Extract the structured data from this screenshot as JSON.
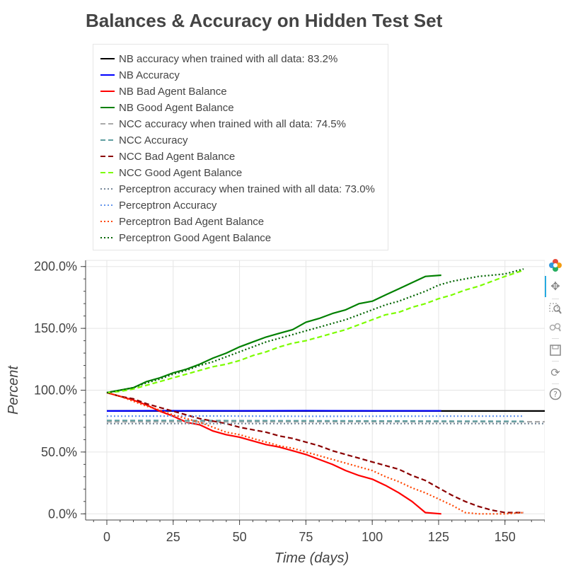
{
  "chart_data": {
    "type": "line",
    "title": "Balances & Accuracy on Hidden Test Set",
    "xlabel": "Time (days)",
    "ylabel": "Percent",
    "xlim": [
      -8,
      165
    ],
    "ylim": [
      -5,
      205
    ],
    "xticks": [
      0,
      25,
      50,
      75,
      100,
      125,
      150
    ],
    "xtick_labels": [
      "0",
      "25",
      "50",
      "75",
      "100",
      "125",
      "150"
    ],
    "yticks": [
      0,
      50,
      100,
      150,
      200
    ],
    "ytick_labels": [
      "0.0%",
      "50.0%",
      "100.0%",
      "150.0%",
      "200.0%"
    ],
    "grid": true,
    "legend_position": "top-left, above plot",
    "series": [
      {
        "name": "NB accuracy when trained with all data: 83.2%",
        "color": "#000000",
        "dash": "solid",
        "x": [
          0,
          165
        ],
        "y": [
          83.2,
          83.2
        ]
      },
      {
        "name": "NB Accuracy",
        "color": "#0000ff",
        "dash": "solid",
        "x": [
          0,
          20,
          50,
          75,
          100,
          126
        ],
        "y": [
          83.2,
          83.4,
          83.3,
          83.4,
          83.3,
          83.3
        ]
      },
      {
        "name": "NB Bad Agent Balance",
        "color": "#ff0000",
        "dash": "solid",
        "x": [
          0,
          5,
          10,
          15,
          20,
          25,
          30,
          35,
          40,
          45,
          50,
          55,
          60,
          65,
          70,
          75,
          80,
          85,
          90,
          95,
          100,
          105,
          110,
          115,
          120,
          126
        ],
        "y": [
          98,
          95,
          92,
          88,
          83,
          79,
          74,
          72,
          67,
          64,
          62,
          59,
          56,
          54,
          51,
          48,
          44,
          40,
          35,
          31,
          28,
          23,
          17,
          10,
          1,
          0
        ]
      },
      {
        "name": "NB Good Agent Balance",
        "color": "#008000",
        "dash": "solid",
        "x": [
          0,
          5,
          10,
          15,
          20,
          25,
          30,
          35,
          40,
          45,
          50,
          55,
          60,
          65,
          70,
          75,
          80,
          85,
          90,
          95,
          100,
          105,
          110,
          115,
          120,
          126
        ],
        "y": [
          98,
          100,
          102,
          107,
          110,
          114,
          117,
          121,
          126,
          130,
          135,
          139,
          143,
          146,
          149,
          155,
          158,
          162,
          165,
          170,
          172,
          177,
          182,
          187,
          192,
          193
        ]
      },
      {
        "name": "NCC accuracy when trained with all data: 74.5%",
        "color": "#aaaaaa",
        "dash": "dashed",
        "x": [
          0,
          165
        ],
        "y": [
          74.5,
          74.5
        ]
      },
      {
        "name": "NCC Accuracy",
        "color": "#5f9ea0",
        "dash": "dashed",
        "x": [
          0,
          40,
          80,
          120,
          157
        ],
        "y": [
          75.5,
          75.4,
          75.2,
          75.0,
          74.8
        ]
      },
      {
        "name": "NCC Bad Agent Balance",
        "color": "#8b0000",
        "dash": "dashed",
        "x": [
          0,
          5,
          10,
          15,
          20,
          25,
          30,
          35,
          40,
          45,
          50,
          55,
          60,
          65,
          70,
          75,
          80,
          85,
          90,
          95,
          100,
          105,
          110,
          115,
          120,
          125,
          130,
          135,
          140,
          145,
          150,
          157
        ],
        "y": [
          98,
          95,
          93,
          89,
          86,
          83,
          80,
          77,
          75,
          73,
          70,
          68,
          66,
          63,
          61,
          58,
          55,
          51,
          48,
          45,
          42,
          39,
          36,
          31,
          27,
          21,
          15,
          10,
          6,
          3,
          1,
          1
        ]
      },
      {
        "name": "NCC Good Agent Balance",
        "color": "#7cfc00",
        "dash": "dashed",
        "x": [
          0,
          5,
          10,
          15,
          20,
          25,
          30,
          35,
          40,
          45,
          50,
          55,
          60,
          65,
          70,
          75,
          80,
          85,
          90,
          95,
          100,
          105,
          110,
          115,
          120,
          125,
          130,
          135,
          140,
          145,
          150,
          157
        ],
        "y": [
          98,
          99,
          101,
          104,
          107,
          110,
          113,
          116,
          119,
          121,
          124,
          128,
          131,
          135,
          138,
          140,
          143,
          146,
          149,
          153,
          157,
          161,
          163,
          167,
          170,
          174,
          177,
          181,
          184,
          188,
          192,
          197
        ]
      },
      {
        "name": "Perceptron accuracy when trained with all data: 73.0%",
        "color": "#778899",
        "dash": "dotted",
        "x": [
          0,
          165
        ],
        "y": [
          73.0,
          73.0
        ]
      },
      {
        "name": "Perceptron Accuracy",
        "color": "#6495ed",
        "dash": "dotted",
        "x": [
          0,
          40,
          80,
          120,
          157
        ],
        "y": [
          79.0,
          79.1,
          78.9,
          79.0,
          79.0
        ]
      },
      {
        "name": "Perceptron Bad Agent Balance",
        "color": "#ff4500",
        "dash": "dotted",
        "x": [
          0,
          5,
          10,
          15,
          20,
          25,
          30,
          35,
          40,
          45,
          50,
          55,
          60,
          65,
          70,
          75,
          80,
          85,
          90,
          95,
          100,
          105,
          110,
          115,
          120,
          125,
          130,
          135,
          140,
          145,
          150,
          157
        ],
        "y": [
          98,
          95,
          91,
          87,
          84,
          80,
          77,
          74,
          70,
          66,
          64,
          61,
          58,
          55,
          53,
          50,
          47,
          44,
          41,
          38,
          35,
          30,
          26,
          21,
          17,
          12,
          7,
          1,
          0,
          0,
          0,
          1
        ]
      },
      {
        "name": "Perceptron Good Agent Balance",
        "color": "#006400",
        "dash": "dotted",
        "x": [
          0,
          5,
          10,
          15,
          20,
          25,
          30,
          35,
          40,
          45,
          50,
          55,
          60,
          65,
          70,
          75,
          80,
          85,
          90,
          95,
          100,
          105,
          110,
          115,
          120,
          125,
          130,
          135,
          140,
          145,
          150,
          157
        ],
        "y": [
          98,
          100,
          102,
          106,
          109,
          113,
          116,
          120,
          123,
          127,
          131,
          135,
          139,
          142,
          145,
          148,
          151,
          154,
          157,
          161,
          165,
          169,
          172,
          176,
          180,
          185,
          188,
          190,
          192,
          193,
          194,
          198
        ]
      }
    ]
  },
  "toolbar": {
    "icons": [
      "bokeh-logo-icon",
      "pan-icon",
      "box-zoom-icon",
      "wheel-zoom-icon",
      "save-icon",
      "reset-icon",
      "help-icon"
    ]
  }
}
